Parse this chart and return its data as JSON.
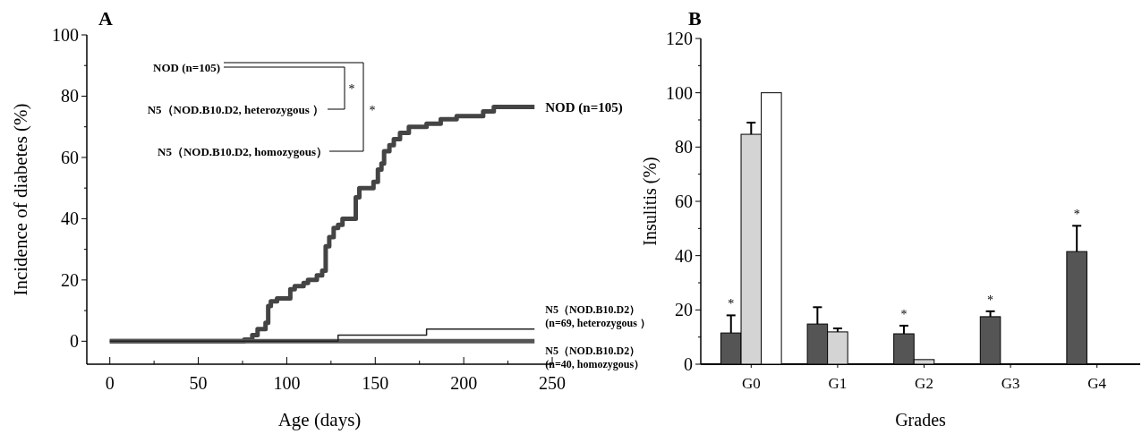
{
  "chart_data": [
    {
      "type": "step",
      "title": "A",
      "xlabel": "Age (days)",
      "ylabel": "Incidence of diabetes (%)",
      "xlim": [
        -13,
        250
      ],
      "ylim": [
        -7.5,
        100
      ],
      "xticks": [
        0,
        {
          "value": 25,
          "label": null
        },
        50,
        {
          "value": 75,
          "label": null
        },
        100,
        {
          "value": 125,
          "label": null
        },
        150,
        {
          "value": 175,
          "label": null
        },
        200,
        {
          "value": 225,
          "label": null
        },
        250
      ],
      "yticks": [
        0,
        {
          "value": 10,
          "label": null
        },
        20,
        {
          "value": 30,
          "label": null
        },
        40,
        {
          "value": 50,
          "label": null
        },
        60,
        {
          "value": 70,
          "label": null
        },
        80,
        {
          "value": 90,
          "label": null
        },
        100
      ],
      "series": [
        {
          "name": "NOD (n=105)",
          "color": "#444444",
          "x": [
            0,
            76,
            80.5,
            83.5,
            88,
            89.5,
            91,
            94.5,
            102,
            104.5,
            109.5,
            112,
            117,
            120,
            122,
            124,
            126.5,
            129,
            131.5,
            139,
            141,
            149,
            151.5,
            153.5,
            155,
            158,
            160.5,
            164,
            169,
            179,
            187,
            196,
            211,
            217,
            240
          ],
          "values": [
            0,
            0.5,
            2,
            4,
            6,
            11.5,
            13,
            14,
            17,
            18,
            19,
            20,
            21.5,
            23,
            31,
            34,
            37,
            38,
            40,
            47,
            50,
            52,
            56,
            58,
            62,
            64,
            66,
            68,
            70,
            71,
            72.5,
            73.5,
            75,
            76.5,
            76.5
          ]
        },
        {
          "name": "N5（NOD.B10.D2） (n=40, homozygous）",
          "color": "#555555",
          "x": [
            0,
            240
          ],
          "values": [
            0,
            0
          ]
        },
        {
          "name": "N5（NOD.B10.D2） (n=69, heterozygous ）",
          "color": "#222222",
          "x": [
            0,
            129,
            179,
            240
          ],
          "values": [
            0,
            2,
            4,
            4
          ]
        }
      ],
      "annotations": [
        "NOD (n=105)",
        "N5（NOD.B10.D2, heterozygous ）",
        "N5（NOD.B10.D2, homozygous）",
        "*",
        "*"
      ]
    },
    {
      "type": "bar",
      "title": "B",
      "xlabel": "Grades",
      "ylabel": "Insulitis (%)",
      "categories": [
        "G0",
        "G1",
        "G2",
        "G3",
        "G4"
      ],
      "ylim": [
        0,
        120
      ],
      "yticks": [
        0,
        {
          "value": 10,
          "label": null
        },
        20,
        {
          "value": 30,
          "label": null
        },
        40,
        {
          "value": 50,
          "label": null
        },
        60,
        {
          "value": 70,
          "label": null
        },
        80,
        {
          "value": 90,
          "label": null
        },
        100,
        {
          "value": 110,
          "label": null
        },
        120
      ],
      "series": [
        {
          "color": "#555555",
          "values": [
            11.5,
            14.8,
            11.2,
            17.5,
            41.5
          ],
          "errors": [
            [
              11.5,
              18
            ],
            [
              14.8,
              21
            ],
            [
              11.2,
              14.2
            ],
            [
              17.5,
              19.5
            ],
            [
              41.5,
              51
            ]
          ]
        },
        {
          "color": "#d4d4d4",
          "values": [
            84.7,
            11.9,
            1.7,
            null,
            null
          ],
          "errors": [
            [
              84.7,
              89
            ],
            [
              11.9,
              13.2
            ],
            null,
            null,
            null
          ]
        },
        {
          "color": "#ffffff",
          "values": [
            100,
            null,
            null,
            null,
            null
          ]
        }
      ],
      "annotations": [
        "*",
        "*",
        "*",
        "*"
      ]
    }
  ]
}
